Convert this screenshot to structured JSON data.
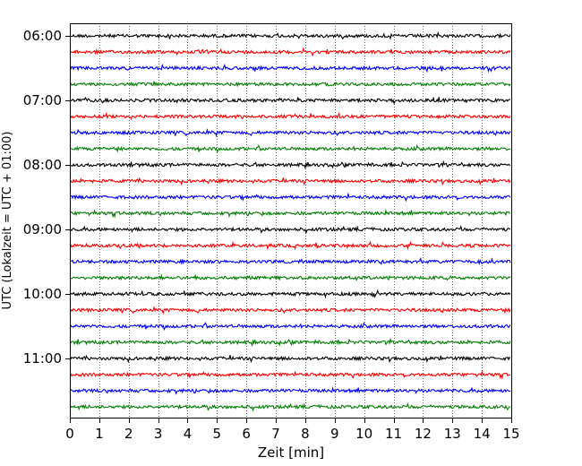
{
  "chart_data": {
    "type": "line",
    "title": "",
    "xlabel": "Zeit  [min]",
    "ylabel": "UTC (Lokalzeit = UTC + 01:00)",
    "xlim": [
      0,
      15
    ],
    "x_ticks": [
      0,
      1,
      2,
      3,
      4,
      5,
      6,
      7,
      8,
      9,
      10,
      11,
      12,
      13,
      14,
      15
    ],
    "x_tick_labels": [
      "0",
      "1",
      "2",
      "3",
      "4",
      "5",
      "6",
      "7",
      "8",
      "9",
      "10",
      "11",
      "12",
      "13",
      "14",
      "15"
    ],
    "y_tick_labels": [
      "06:00",
      "07:00",
      "08:00",
      "09:00",
      "10:00",
      "11:00"
    ],
    "grid": "vertical dotted",
    "trace_interval_min": 15,
    "traces": [
      {
        "start": "06:00",
        "color": "#000000"
      },
      {
        "start": "06:15",
        "color": "#ff0000"
      },
      {
        "start": "06:30",
        "color": "#0000ff"
      },
      {
        "start": "06:45",
        "color": "#008000"
      },
      {
        "start": "07:00",
        "color": "#000000"
      },
      {
        "start": "07:15",
        "color": "#ff0000"
      },
      {
        "start": "07:30",
        "color": "#0000ff"
      },
      {
        "start": "07:45",
        "color": "#008000"
      },
      {
        "start": "08:00",
        "color": "#000000"
      },
      {
        "start": "08:15",
        "color": "#ff0000"
      },
      {
        "start": "08:30",
        "color": "#0000ff"
      },
      {
        "start": "08:45",
        "color": "#008000"
      },
      {
        "start": "09:00",
        "color": "#000000"
      },
      {
        "start": "09:15",
        "color": "#ff0000"
      },
      {
        "start": "09:30",
        "color": "#0000ff"
      },
      {
        "start": "09:45",
        "color": "#008000"
      },
      {
        "start": "10:00",
        "color": "#000000"
      },
      {
        "start": "10:15",
        "color": "#ff0000"
      },
      {
        "start": "10:30",
        "color": "#0000ff"
      },
      {
        "start": "10:45",
        "color": "#008000"
      },
      {
        "start": "11:00",
        "color": "#000000"
      },
      {
        "start": "11:15",
        "color": "#ff0000"
      },
      {
        "start": "11:30",
        "color": "#0000ff"
      },
      {
        "start": "11:45",
        "color": "#008000"
      }
    ]
  }
}
